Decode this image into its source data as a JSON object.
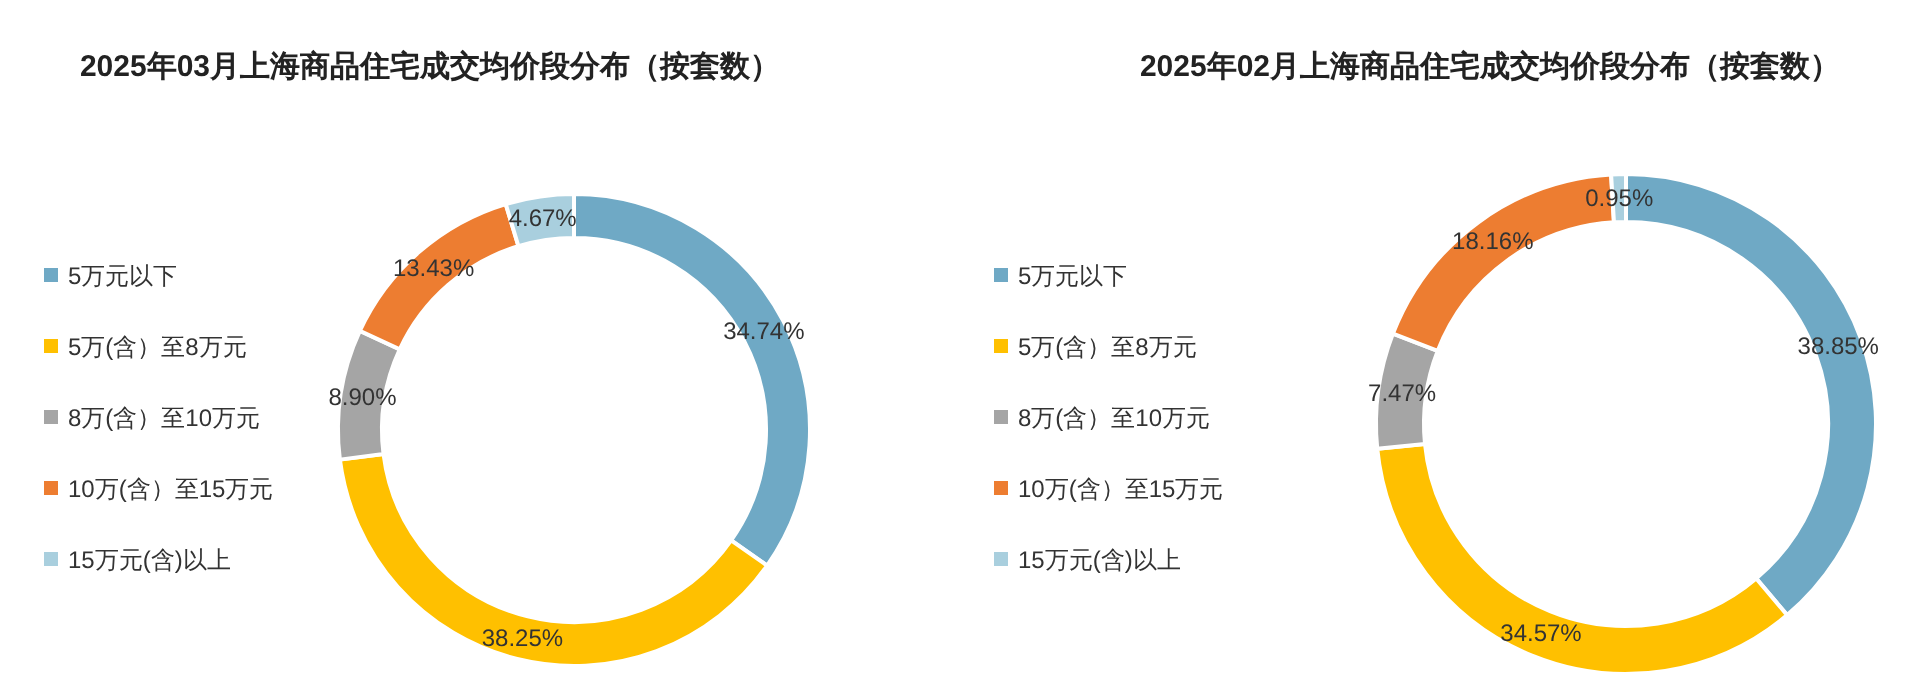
{
  "chart_data": [
    {
      "type": "donut",
      "title": "2025年03月上海商品住宅成交均价段分布（按套数）",
      "categories": [
        "5万元以下",
        "5万(含）至8万元",
        "8万(含）至10万元",
        "10万(含）至15万元",
        "15万元(含)以上"
      ],
      "values": [
        34.74,
        38.25,
        8.9,
        13.43,
        4.67
      ],
      "value_labels": [
        "34.74%",
        "38.25%",
        "8.90%",
        "13.43%",
        "4.67%"
      ],
      "colors": [
        "#6fa9c5",
        "#ffc000",
        "#a5a5a5",
        "#ed7d31",
        "#a9cfde"
      ],
      "legend": "left"
    },
    {
      "type": "donut",
      "title": "2025年02月上海商品住宅成交均价段分布（按套数）",
      "categories": [
        "5万元以下",
        "5万(含）至8万元",
        "8万(含）至10万元",
        "10万(含）至15万元",
        "15万元(含)以上"
      ],
      "values": [
        38.85,
        34.57,
        7.47,
        18.16,
        0.95
      ],
      "value_labels": [
        "38.85%",
        "34.57%",
        "7.47%",
        "18.16%",
        "0.95%"
      ],
      "colors": [
        "#6fa9c5",
        "#ffc000",
        "#a5a5a5",
        "#ed7d31",
        "#a9cfde"
      ],
      "legend": "left"
    }
  ]
}
